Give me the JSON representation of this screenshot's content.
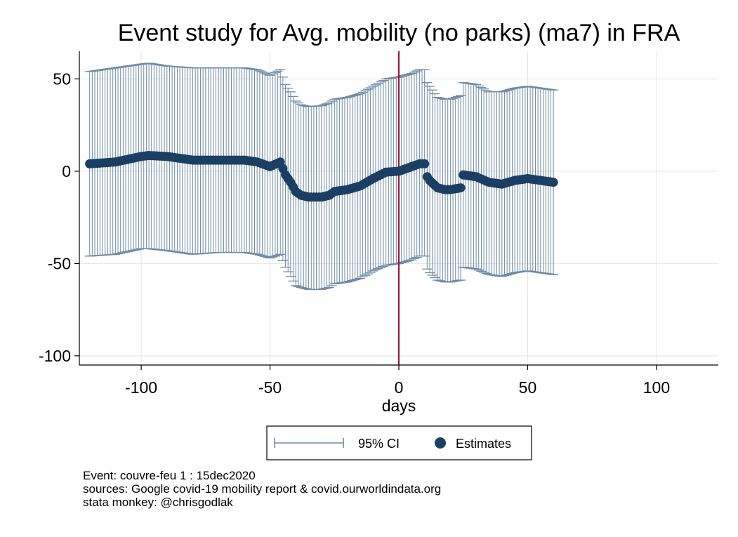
{
  "chart_data": {
    "type": "scatter",
    "title": "Event study for Avg. mobility (no parks) (ma7) in FRA",
    "xlabel": "days",
    "ylabel": "",
    "xlim": [
      -124,
      124
    ],
    "ylim": [
      -105,
      65
    ],
    "xticks": [
      -100,
      -50,
      0,
      50,
      100
    ],
    "yticks": [
      -100,
      -50,
      0,
      50
    ],
    "grid": true,
    "event_line_x": 0,
    "legend": {
      "position": "bottom-center",
      "entries": [
        "95% CI",
        "Estimates"
      ]
    },
    "colors": {
      "ci": "#6f8ba3",
      "estimate": "#1b3f63",
      "event_line": "#a3103f",
      "grid": "#e4e4e4"
    },
    "series": [
      {
        "name": "Estimates",
        "type": "scatter",
        "knots_x": [
          -120,
          -110,
          -100,
          -97,
          -90,
          -80,
          -70,
          -60,
          -55,
          -50,
          -46,
          -44,
          -42,
          -40,
          -38,
          -35,
          -30,
          -27,
          -25,
          -20,
          -15,
          -10,
          -5,
          0,
          5,
          8,
          10,
          11,
          12,
          15,
          18,
          20,
          24,
          25,
          30,
          35,
          40,
          45,
          50,
          55,
          60
        ],
        "knots_y": [
          4,
          5,
          8,
          8.5,
          8,
          6,
          6,
          6,
          5,
          2.5,
          5,
          -2,
          -6,
          -11,
          -13,
          -14,
          -14,
          -13,
          -11,
          -10,
          -8,
          -4,
          -0.5,
          0,
          2.5,
          4,
          4,
          -3,
          -5,
          -9,
          -10,
          -10,
          -9,
          -2,
          -3,
          -6,
          -7,
          -5,
          -4,
          -5,
          -6
        ]
      },
      {
        "name": "95% CI",
        "type": "errorbar",
        "upper_knots_x": [
          -120,
          -110,
          -100,
          -97,
          -90,
          -80,
          -70,
          -60,
          -55,
          -50,
          -46,
          -44,
          -42,
          -40,
          -38,
          -35,
          -30,
          -27,
          -25,
          -20,
          -15,
          -10,
          -5,
          0,
          5,
          8,
          10,
          11,
          12,
          15,
          18,
          20,
          24,
          25,
          30,
          35,
          40,
          45,
          50,
          55,
          60
        ],
        "upper_knots_y": [
          54,
          56,
          58,
          58.5,
          57,
          56,
          56,
          56,
          55,
          52,
          55,
          47,
          43,
          38,
          36,
          35,
          35.5,
          37,
          39,
          40,
          42,
          46,
          50,
          51,
          53,
          55,
          55,
          48,
          46,
          40,
          39,
          39,
          41,
          48,
          47,
          43,
          43,
          45,
          46,
          45,
          44
        ],
        "lower_knots_x": [
          -120,
          -110,
          -100,
          -97,
          -90,
          -80,
          -70,
          -60,
          -55,
          -50,
          -46,
          -44,
          -42,
          -40,
          -38,
          -35,
          -30,
          -27,
          -25,
          -20,
          -15,
          -10,
          -5,
          0,
          5,
          8,
          10,
          11,
          12,
          15,
          18,
          20,
          24,
          25,
          30,
          35,
          40,
          45,
          50,
          55,
          60
        ],
        "lower_knots_y": [
          -46,
          -45,
          -42,
          -42,
          -43,
          -45,
          -44,
          -44,
          -45,
          -47,
          -45,
          -52,
          -57,
          -62,
          -63,
          -64,
          -64,
          -63,
          -61,
          -60,
          -58,
          -54,
          -51,
          -50,
          -48,
          -46,
          -46,
          -53,
          -55,
          -59,
          -60,
          -60,
          -59,
          -52,
          -53,
          -56,
          -57,
          -55,
          -54,
          -55,
          -56
        ]
      }
    ]
  },
  "notes": [
    "Event: couvre-feu 1 : 15dec2020",
    "sources: Google covid-19 mobility report & covid.ourworldindata.org",
    "stata monkey: @chrisgodlak"
  ]
}
